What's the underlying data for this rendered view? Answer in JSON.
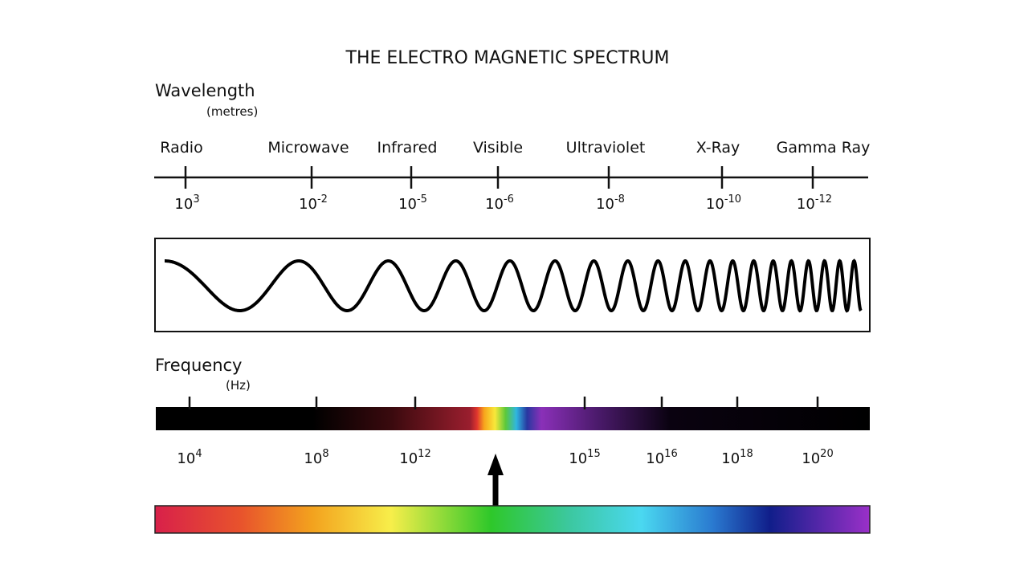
{
  "title": "THE ELECTRO MAGNETIC SPECTRUM",
  "wavelength": {
    "label": "Wavelength",
    "unit": "(metres)",
    "bands": [
      "Radio",
      "Microwave",
      "Infrared",
      "Visible",
      "Ultraviolet",
      "X-Ray",
      "Gamma Ray"
    ],
    "ticks": [
      {
        "base": "10",
        "exp": "3"
      },
      {
        "base": "10",
        "exp": "-2"
      },
      {
        "base": "10",
        "exp": "-5"
      },
      {
        "base": "10",
        "exp": "-6"
      },
      {
        "base": "10",
        "exp": "-8"
      },
      {
        "base": "10",
        "exp": "-10"
      },
      {
        "base": "10",
        "exp": "-12"
      }
    ]
  },
  "frequency": {
    "label": "Frequency",
    "unit": "(Hz)",
    "ticks": [
      {
        "base": "10",
        "exp": "4"
      },
      {
        "base": "10",
        "exp": "8"
      },
      {
        "base": "10",
        "exp": "12"
      },
      {
        "base": "10",
        "exp": "15"
      },
      {
        "base": "10",
        "exp": "16"
      },
      {
        "base": "10",
        "exp": "18"
      },
      {
        "base": "10",
        "exp": "20"
      }
    ]
  }
}
